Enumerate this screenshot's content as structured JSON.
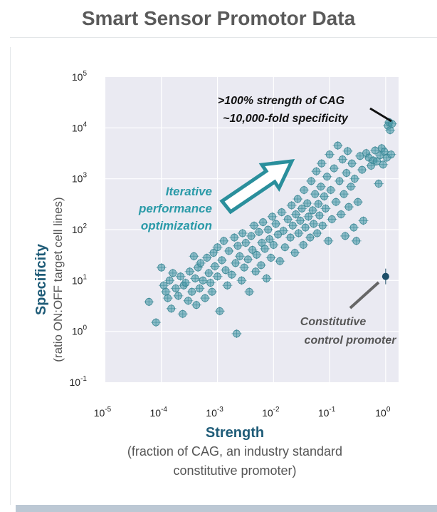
{
  "page": {
    "title": "Smart Sensor Promotor Data"
  },
  "colors": {
    "points": "#4a9aa8",
    "point_edge": "#3d8895",
    "highlight_point": "#1d4e68",
    "arrow": "#2a8f9c",
    "plot_background": "#eaeaf2",
    "grid": "#ffffff"
  },
  "chart_data": {
    "type": "scatter",
    "xscale": "log",
    "yscale": "log",
    "xlim": [
      1e-05,
      1.7
    ],
    "ylim": [
      0.1,
      100000
    ],
    "xticks": [
      "10^-5",
      "10^-4",
      "10^-3",
      "10^-2",
      "10^-1",
      "10^0"
    ],
    "yticks": [
      "10^-1",
      "10^0",
      "10^1",
      "10^2",
      "10^3",
      "10^4",
      "10^5"
    ],
    "xlabel": "Strength",
    "xlabel_sub": "(fraction of CAG, an industry standard constitutive promoter)",
    "ylabel": "Specificity",
    "ylabel_sub": "(ratio ON:OFF target cell lines)",
    "grid": true,
    "annotations": {
      "top": [
        ">100% strength of CAG",
        "~10,000-fold specificity"
      ],
      "arrow_text": [
        "Iterative",
        "performance",
        "optimization"
      ],
      "control": [
        "Constitutive",
        "control promoter"
      ]
    },
    "highlight_point": {
      "x": 1.0,
      "y": 12
    },
    "points": [
      [
        6e-05,
        3.8
      ],
      [
        8e-05,
        1.5
      ],
      [
        0.0001,
        18
      ],
      [
        0.00011,
        8
      ],
      [
        0.00012,
        6
      ],
      [
        0.00013,
        4.5
      ],
      [
        0.00014,
        10
      ],
      [
        0.00015,
        2.8
      ],
      [
        0.00016,
        14
      ],
      [
        0.00018,
        7
      ],
      [
        0.0002,
        5
      ],
      [
        0.00022,
        12
      ],
      [
        0.00024,
        2.2
      ],
      [
        0.00025,
        8
      ],
      [
        0.00027,
        9
      ],
      [
        0.0003,
        4
      ],
      [
        0.00032,
        15
      ],
      [
        0.00035,
        6
      ],
      [
        0.00038,
        30
      ],
      [
        0.0004,
        11
      ],
      [
        0.00042,
        3.3
      ],
      [
        0.00045,
        18
      ],
      [
        0.00048,
        7
      ],
      [
        0.0005,
        22
      ],
      [
        0.00055,
        10
      ],
      [
        0.0006,
        4.5
      ],
      [
        0.00065,
        28
      ],
      [
        0.0007,
        14
      ],
      [
        0.00075,
        9
      ],
      [
        0.0008,
        6
      ],
      [
        0.00085,
        35
      ],
      [
        0.0009,
        19
      ],
      [
        0.001,
        45
      ],
      [
        0.001,
        12
      ],
      [
        0.0011,
        2.5
      ],
      [
        0.0012,
        25
      ],
      [
        0.0013,
        60
      ],
      [
        0.0014,
        16
      ],
      [
        0.0015,
        8
      ],
      [
        0.0016,
        38
      ],
      [
        0.0018,
        13
      ],
      [
        0.002,
        70
      ],
      [
        0.0021,
        22
      ],
      [
        0.0022,
        0.9
      ],
      [
        0.0023,
        48
      ],
      [
        0.0025,
        30
      ],
      [
        0.0027,
        10
      ],
      [
        0.0028,
        85
      ],
      [
        0.003,
        18
      ],
      [
        0.0032,
        55
      ],
      [
        0.0035,
        26
      ],
      [
        0.0037,
        6
      ],
      [
        0.004,
        75
      ],
      [
        0.0042,
        40
      ],
      [
        0.0045,
        120
      ],
      [
        0.0048,
        15
      ],
      [
        0.005,
        32
      ],
      [
        0.0055,
        90
      ],
      [
        0.006,
        20
      ],
      [
        0.0062,
        55
      ],
      [
        0.0065,
        140
      ],
      [
        0.007,
        42
      ],
      [
        0.0075,
        11
      ],
      [
        0.008,
        100
      ],
      [
        0.0085,
        65
      ],
      [
        0.009,
        28
      ],
      [
        0.0095,
        180
      ],
      [
        0.01,
        50
      ],
      [
        0.011,
        130
      ],
      [
        0.012,
        80
      ],
      [
        0.013,
        24
      ],
      [
        0.014,
        220
      ],
      [
        0.015,
        95
      ],
      [
        0.016,
        45
      ],
      [
        0.018,
        160
      ],
      [
        0.02,
        70
      ],
      [
        0.021,
        300
      ],
      [
        0.022,
        120
      ],
      [
        0.024,
        35
      ],
      [
        0.025,
        200
      ],
      [
        0.027,
        400
      ],
      [
        0.028,
        85
      ],
      [
        0.03,
        150
      ],
      [
        0.032,
        260
      ],
      [
        0.034,
        50
      ],
      [
        0.035,
        600
      ],
      [
        0.037,
        110
      ],
      [
        0.04,
        330
      ],
      [
        0.042,
        180
      ],
      [
        0.045,
        70
      ],
      [
        0.047,
        900
      ],
      [
        0.05,
        240
      ],
      [
        0.052,
        130
      ],
      [
        0.055,
        500
      ],
      [
        0.058,
        1400
      ],
      [
        0.06,
        85
      ],
      [
        0.063,
        320
      ],
      [
        0.066,
        190
      ],
      [
        0.07,
        700
      ],
      [
        0.072,
        2000
      ],
      [
        0.075,
        120
      ],
      [
        0.08,
        450
      ],
      [
        0.085,
        260
      ],
      [
        0.09,
        1100
      ],
      [
        0.095,
        60
      ],
      [
        0.1,
        3000
      ],
      [
        0.105,
        600
      ],
      [
        0.11,
        160
      ],
      [
        0.12,
        1600
      ],
      [
        0.13,
        350
      ],
      [
        0.14,
        4500
      ],
      [
        0.15,
        900
      ],
      [
        0.16,
        200
      ],
      [
        0.17,
        2400
      ],
      [
        0.18,
        500
      ],
      [
        0.19,
        75
      ],
      [
        0.2,
        1300
      ],
      [
        0.21,
        3500
      ],
      [
        0.22,
        280
      ],
      [
        0.24,
        700
      ],
      [
        0.25,
        2000
      ],
      [
        0.27,
        110
      ],
      [
        0.28,
        1000
      ],
      [
        0.3,
        60
      ],
      [
        0.32,
        350
      ],
      [
        0.35,
        2800
      ],
      [
        0.38,
        1500
      ],
      [
        0.4,
        150
      ],
      [
        0.45,
        3200
      ],
      [
        0.5,
        2600
      ],
      [
        0.55,
        1800
      ],
      [
        0.6,
        2300
      ],
      [
        0.65,
        3600
      ],
      [
        0.7,
        2200
      ],
      [
        0.75,
        800
      ],
      [
        0.8,
        2900
      ],
      [
        0.85,
        4000
      ],
      [
        0.9,
        1900
      ],
      [
        0.95,
        3400
      ],
      [
        1.05,
        2600
      ],
      [
        1.1,
        11000
      ],
      [
        1.15,
        13000
      ],
      [
        1.2,
        9000
      ],
      [
        1.25,
        3000
      ],
      [
        1.3,
        12000
      ]
    ]
  }
}
